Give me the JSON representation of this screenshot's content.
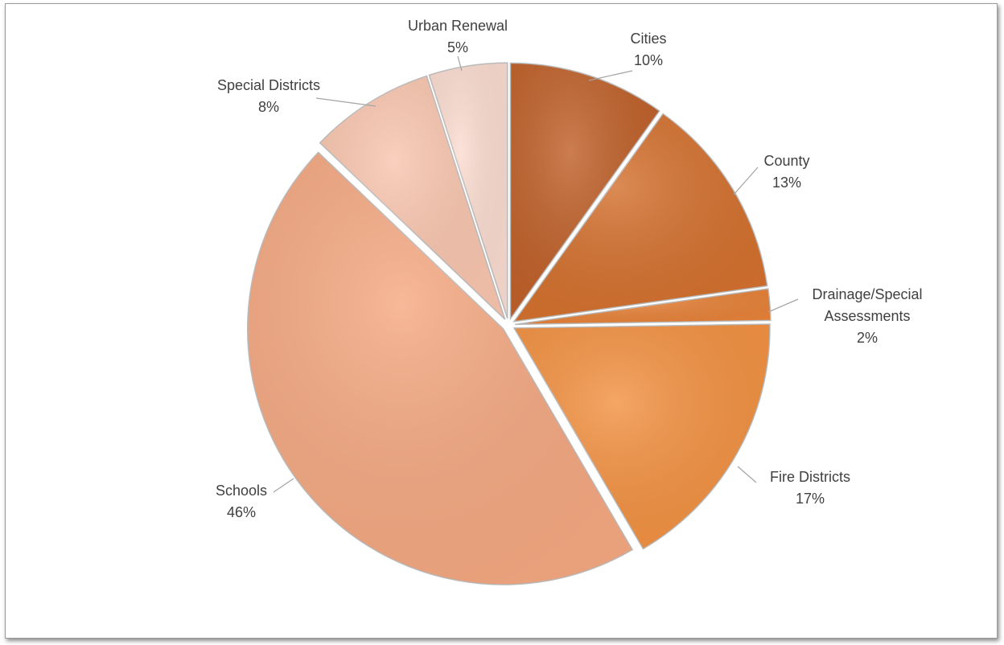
{
  "chart_data": {
    "type": "pie",
    "title": "",
    "slices": [
      {
        "label": "Cities",
        "value": 10,
        "pct_label": "10%",
        "color": "#C0612A"
      },
      {
        "label": "County",
        "value": 13,
        "pct_label": "13%",
        "color": "#D4712F"
      },
      {
        "label": "Drainage/Special Assessments",
        "label_lines": [
          "Drainage/Special",
          "Assessments"
        ],
        "value": 2,
        "pct_label": "2%",
        "color": "#E7833A"
      },
      {
        "label": "Fire Districts",
        "value": 17,
        "pct_label": "17%",
        "color": "#F39243"
      },
      {
        "label": "Schools",
        "value": 46,
        "pct_label": "46%",
        "color": "#F5A982"
      },
      {
        "label": "Special Districts",
        "value": 8,
        "pct_label": "8%",
        "color": "#F9C6AF"
      },
      {
        "label": "Urban Renewal",
        "value": 5,
        "pct_label": "5%",
        "color": "#FBDCD0"
      }
    ],
    "start_angle": "12 o'clock",
    "direction": "clockwise",
    "exploded": true,
    "legend": "none"
  }
}
